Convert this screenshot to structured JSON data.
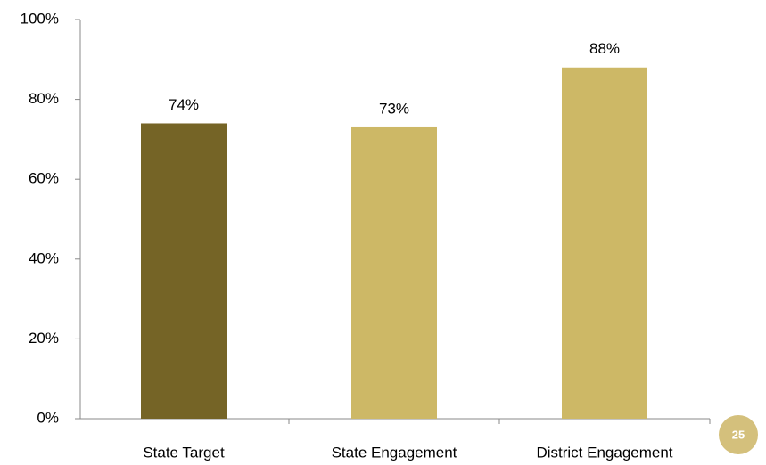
{
  "chart_data": {
    "type": "bar",
    "categories": [
      "State Target",
      "State Engagement",
      "District Engagement"
    ],
    "values": [
      74,
      73,
      88
    ],
    "value_labels": [
      "74%",
      "73%",
      "88%"
    ],
    "colors": [
      "#756426",
      "#cdb866",
      "#cdb866"
    ],
    "ylim": [
      0,
      100
    ],
    "yticks": [
      {
        "value": 0,
        "label": "0%"
      },
      {
        "value": 20,
        "label": "20%"
      },
      {
        "value": 40,
        "label": "40%"
      },
      {
        "value": 60,
        "label": "60%"
      },
      {
        "value": 80,
        "label": "80%"
      },
      {
        "value": 100,
        "label": "100%"
      }
    ],
    "grid": false
  },
  "page_number": "25"
}
